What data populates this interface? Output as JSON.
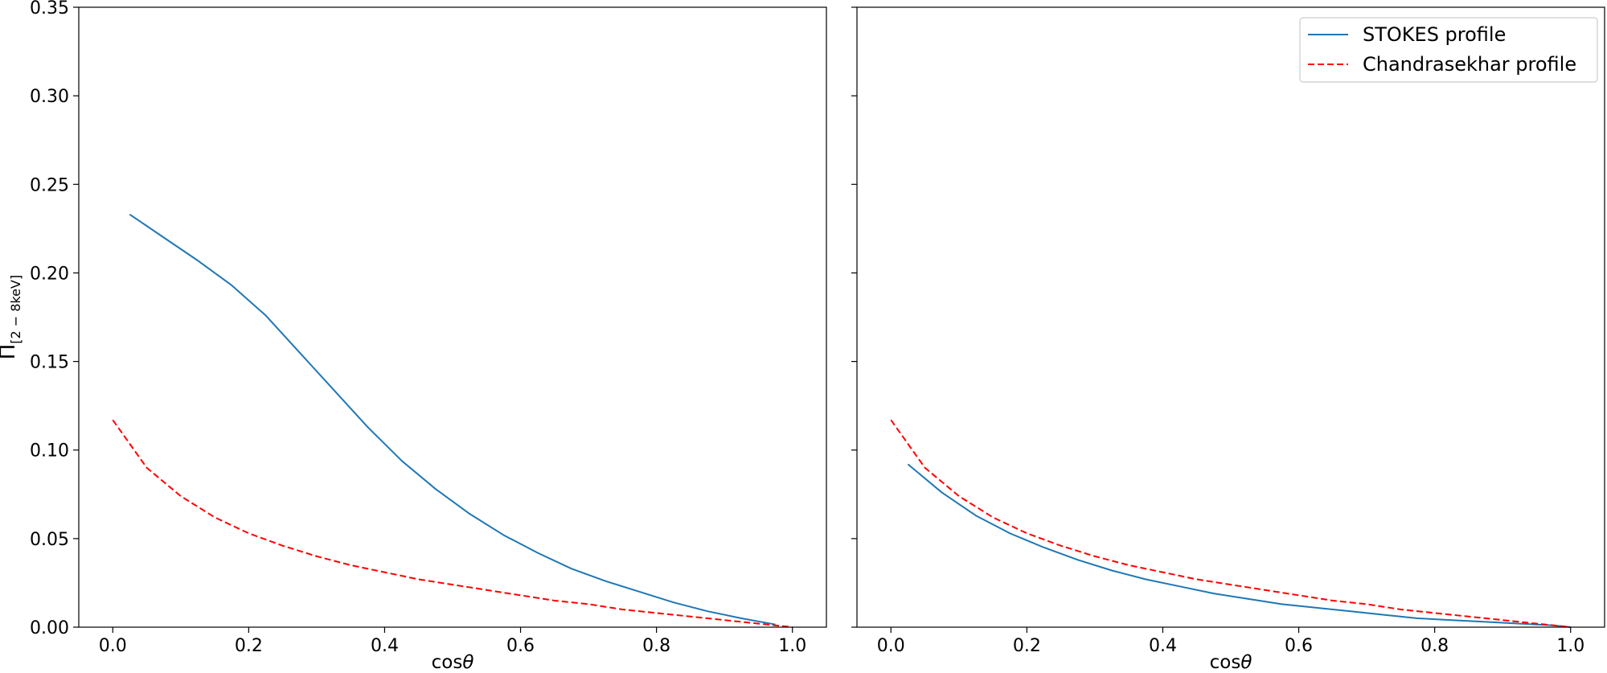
{
  "chart_data": [
    {
      "type": "line",
      "xlabel_main": "cos",
      "xlabel_symbol": "θ",
      "ylabel_main": "Π",
      "ylabel_sub": "[2 − 8keV]",
      "xlim": [
        -0.05,
        1.05
      ],
      "ylim": [
        0.0,
        0.35
      ],
      "xticks": [
        "0.0",
        "0.2",
        "0.4",
        "0.6",
        "0.8",
        "1.0"
      ],
      "xtick_values": [
        0.0,
        0.2,
        0.4,
        0.6,
        0.8,
        1.0
      ],
      "yticks": [
        "0.00",
        "0.05",
        "0.10",
        "0.15",
        "0.20",
        "0.25",
        "0.30",
        "0.35"
      ],
      "ytick_values": [
        0.0,
        0.05,
        0.1,
        0.15,
        0.2,
        0.25,
        0.3,
        0.35
      ],
      "grid": false,
      "series": [
        {
          "name": "STOKES profile",
          "color": "#1f77b4",
          "dash": "solid",
          "x": [
            0.025,
            0.075,
            0.125,
            0.175,
            0.225,
            0.275,
            0.325,
            0.375,
            0.425,
            0.475,
            0.525,
            0.575,
            0.625,
            0.675,
            0.725,
            0.775,
            0.825,
            0.875,
            0.925,
            0.975
          ],
          "y": [
            0.233,
            0.22,
            0.207,
            0.193,
            0.176,
            0.155,
            0.134,
            0.113,
            0.094,
            0.078,
            0.064,
            0.052,
            0.042,
            0.033,
            0.026,
            0.02,
            0.014,
            0.009,
            0.005,
            0.0015
          ]
        },
        {
          "name": "Chandrasekhar profile",
          "color": "#ff0000",
          "dash": "dashed",
          "x": [
            0.0,
            0.05,
            0.1,
            0.15,
            0.2,
            0.25,
            0.3,
            0.35,
            0.4,
            0.45,
            0.5,
            0.55,
            0.6,
            0.65,
            0.7,
            0.75,
            0.8,
            0.85,
            0.9,
            0.95,
            1.0
          ],
          "y": [
            0.117,
            0.09,
            0.074,
            0.062,
            0.053,
            0.046,
            0.04,
            0.035,
            0.031,
            0.027,
            0.024,
            0.021,
            0.018,
            0.015,
            0.013,
            0.01,
            0.008,
            0.006,
            0.004,
            0.002,
            0.0
          ]
        }
      ]
    },
    {
      "type": "line",
      "xlabel_main": "cos",
      "xlabel_symbol": "θ",
      "xlim": [
        -0.05,
        1.05
      ],
      "ylim": [
        0.0,
        0.35
      ],
      "xticks": [
        "0.0",
        "0.2",
        "0.4",
        "0.6",
        "0.8",
        "1.0"
      ],
      "xtick_values": [
        0.0,
        0.2,
        0.4,
        0.6,
        0.8,
        1.0
      ],
      "ytick_values": [
        0.0,
        0.05,
        0.1,
        0.15,
        0.2,
        0.25,
        0.3,
        0.35
      ],
      "grid": false,
      "legend": {
        "placement": "top-right",
        "entries": [
          "STOKES profile",
          "Chandrasekhar profile"
        ]
      },
      "series": [
        {
          "name": "STOKES profile",
          "color": "#1f77b4",
          "dash": "solid",
          "x": [
            0.025,
            0.075,
            0.125,
            0.175,
            0.225,
            0.275,
            0.325,
            0.375,
            0.425,
            0.475,
            0.525,
            0.575,
            0.625,
            0.675,
            0.725,
            0.775,
            0.825,
            0.875,
            0.925,
            0.975,
            1.0
          ],
          "y": [
            0.092,
            0.076,
            0.063,
            0.053,
            0.045,
            0.038,
            0.032,
            0.027,
            0.023,
            0.019,
            0.016,
            0.013,
            0.011,
            0.009,
            0.007,
            0.005,
            0.004,
            0.003,
            0.002,
            0.001,
            0.0
          ]
        },
        {
          "name": "Chandrasekhar profile",
          "color": "#ff0000",
          "dash": "dashed",
          "x": [
            0.0,
            0.05,
            0.1,
            0.15,
            0.2,
            0.25,
            0.3,
            0.35,
            0.4,
            0.45,
            0.5,
            0.55,
            0.6,
            0.65,
            0.7,
            0.75,
            0.8,
            0.85,
            0.9,
            0.95,
            1.0
          ],
          "y": [
            0.117,
            0.09,
            0.074,
            0.062,
            0.053,
            0.046,
            0.04,
            0.035,
            0.031,
            0.027,
            0.024,
            0.021,
            0.018,
            0.015,
            0.013,
            0.01,
            0.008,
            0.006,
            0.004,
            0.002,
            0.0
          ]
        }
      ]
    }
  ]
}
